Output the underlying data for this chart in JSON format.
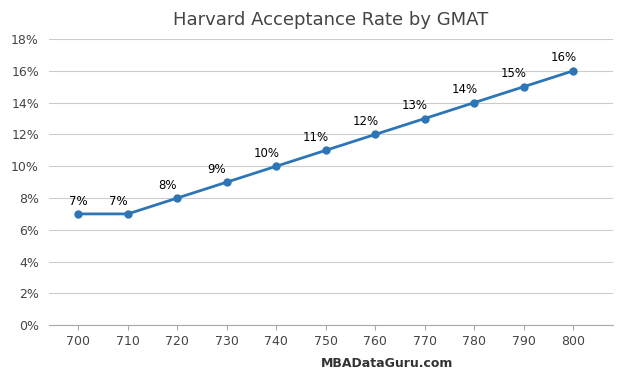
{
  "title": "Harvard Acceptance Rate by GMAT",
  "x_values": [
    700,
    710,
    720,
    730,
    740,
    750,
    760,
    770,
    780,
    790,
    800
  ],
  "y_values": [
    0.07,
    0.07,
    0.08,
    0.09,
    0.1,
    0.11,
    0.12,
    0.13,
    0.14,
    0.15,
    0.16
  ],
  "labels": [
    "7%",
    "7%",
    "8%",
    "9%",
    "10%",
    "11%",
    "12%",
    "13%",
    "14%",
    "15%",
    "16%"
  ],
  "line_color": "#2E75B6",
  "marker_color": "#2E75B6",
  "background_color": "#FFFFFF",
  "grid_color": "#CCCCCC",
  "title_fontsize": 13,
  "label_fontsize": 8.5,
  "tick_fontsize": 9,
  "watermark": "MBADataGuru.com",
  "ylim": [
    0,
    0.18
  ],
  "yticks": [
    0,
    0.02,
    0.04,
    0.06,
    0.08,
    0.1,
    0.12,
    0.14,
    0.16,
    0.18
  ]
}
